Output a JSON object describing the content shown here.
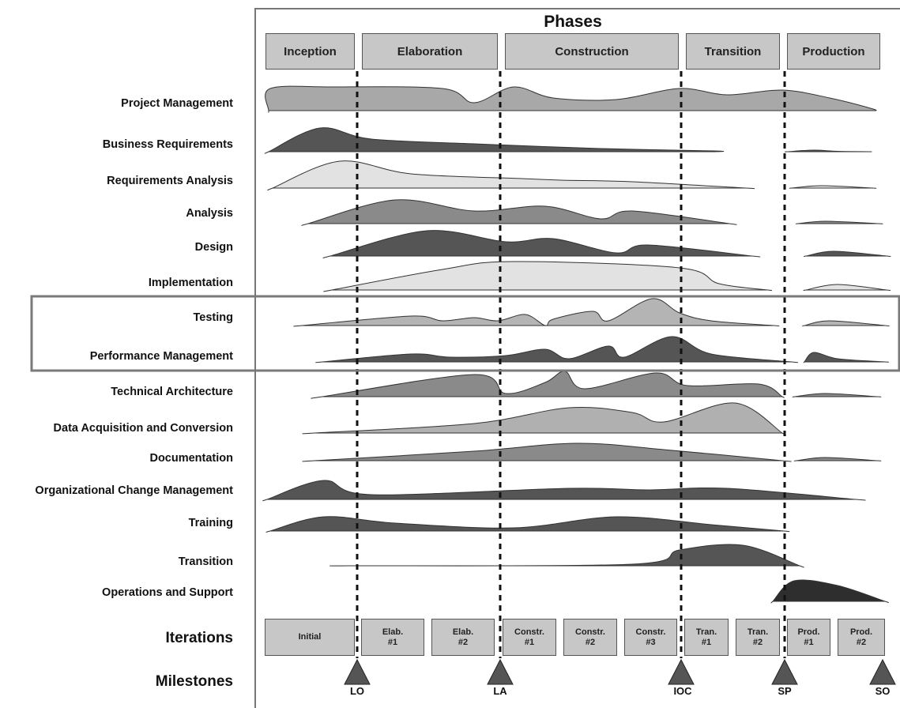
{
  "title": "Phases",
  "phases": [
    "Inception",
    "Elaboration",
    "Construction",
    "Transition",
    "Production"
  ],
  "disciplines": [
    "Project Management",
    "Business Requirements",
    "Requirements Analysis",
    "Analysis",
    "Design",
    "Implementation",
    "Testing",
    "Performance Management",
    "Technical Architecture",
    "Data Acquisition and Conversion",
    "Documentation",
    "Organizational Change Management",
    "Training",
    "Transition",
    "Operations and Support"
  ],
  "iterations_label": "Iterations",
  "iterations": [
    "Initial",
    "Elab.\n#1",
    "Elab.\n#2",
    "Constr.\n#1",
    "Constr.\n#2",
    "Constr.\n#3",
    "Tran.\n#1",
    "Tran.\n#2",
    "Prod.\n#1",
    "Prod.\n#2"
  ],
  "milestones_label": "Milestones",
  "milestones": [
    "LO",
    "LA",
    "IOC",
    "SP",
    "SO"
  ],
  "colors": {
    "box_fill": "#c7c7c7",
    "dark": "#555555",
    "medium": "#8a8a8a",
    "light": "#e2e2e2",
    "highlight_frame": "#7a7a7a"
  }
}
